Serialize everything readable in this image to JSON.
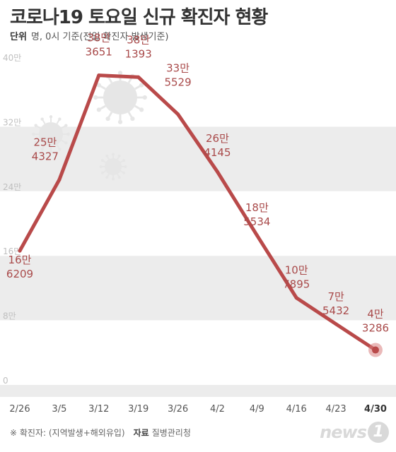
{
  "header": {
    "title": "코로나19 토요일 신규 확진자 현황",
    "unit_label": "단위",
    "unit_text": "명, 0시 기준(전일 확진자 발생기준)"
  },
  "footer": {
    "note": "※ 확진자: (지역발생+해외유입)",
    "source_label": "자료",
    "source_text": "질병관리청"
  },
  "logo": {
    "text": "news",
    "mark": "1"
  },
  "colors": {
    "line": "#b94a4a",
    "label": "#a94a4a",
    "band_dark": "#ececec",
    "band_light": "#ffffff",
    "virus": "#e6e6e6",
    "marker": "#d98080"
  },
  "icons": [
    "virus-icon"
  ],
  "chart_data": {
    "type": "line",
    "title": "코로나19 토요일 신규 확진자 현황",
    "xlabel": "",
    "ylabel": "",
    "categories": [
      "2/26",
      "3/5",
      "3/12",
      "3/19",
      "3/26",
      "4/2",
      "4/9",
      "4/16",
      "4/23",
      "4/30"
    ],
    "values": [
      166209,
      254327,
      383651,
      381393,
      335529,
      264145,
      185534,
      107895,
      75432,
      43286
    ],
    "data_labels": [
      [
        "16만",
        "6209"
      ],
      [
        "25만",
        "4327"
      ],
      [
        "38만",
        "3651"
      ],
      [
        "38만",
        "1393"
      ],
      [
        "33만",
        "5529"
      ],
      [
        "26만",
        "4145"
      ],
      [
        "18만",
        "5534"
      ],
      [
        "10만",
        "7895"
      ],
      [
        "7만",
        "5432"
      ],
      [
        "4만",
        "3286"
      ]
    ],
    "y_ticks": [
      {
        "value": 0,
        "label": "0"
      },
      {
        "value": 80000,
        "label": "8만"
      },
      {
        "value": 160000,
        "label": "16만"
      },
      {
        "value": 240000,
        "label": "24만"
      },
      {
        "value": 320000,
        "label": "32만"
      },
      {
        "value": 400000,
        "label": "40만"
      }
    ],
    "ylim": [
      0,
      400000
    ],
    "highlight_last": true,
    "grid": "alternating bands"
  }
}
